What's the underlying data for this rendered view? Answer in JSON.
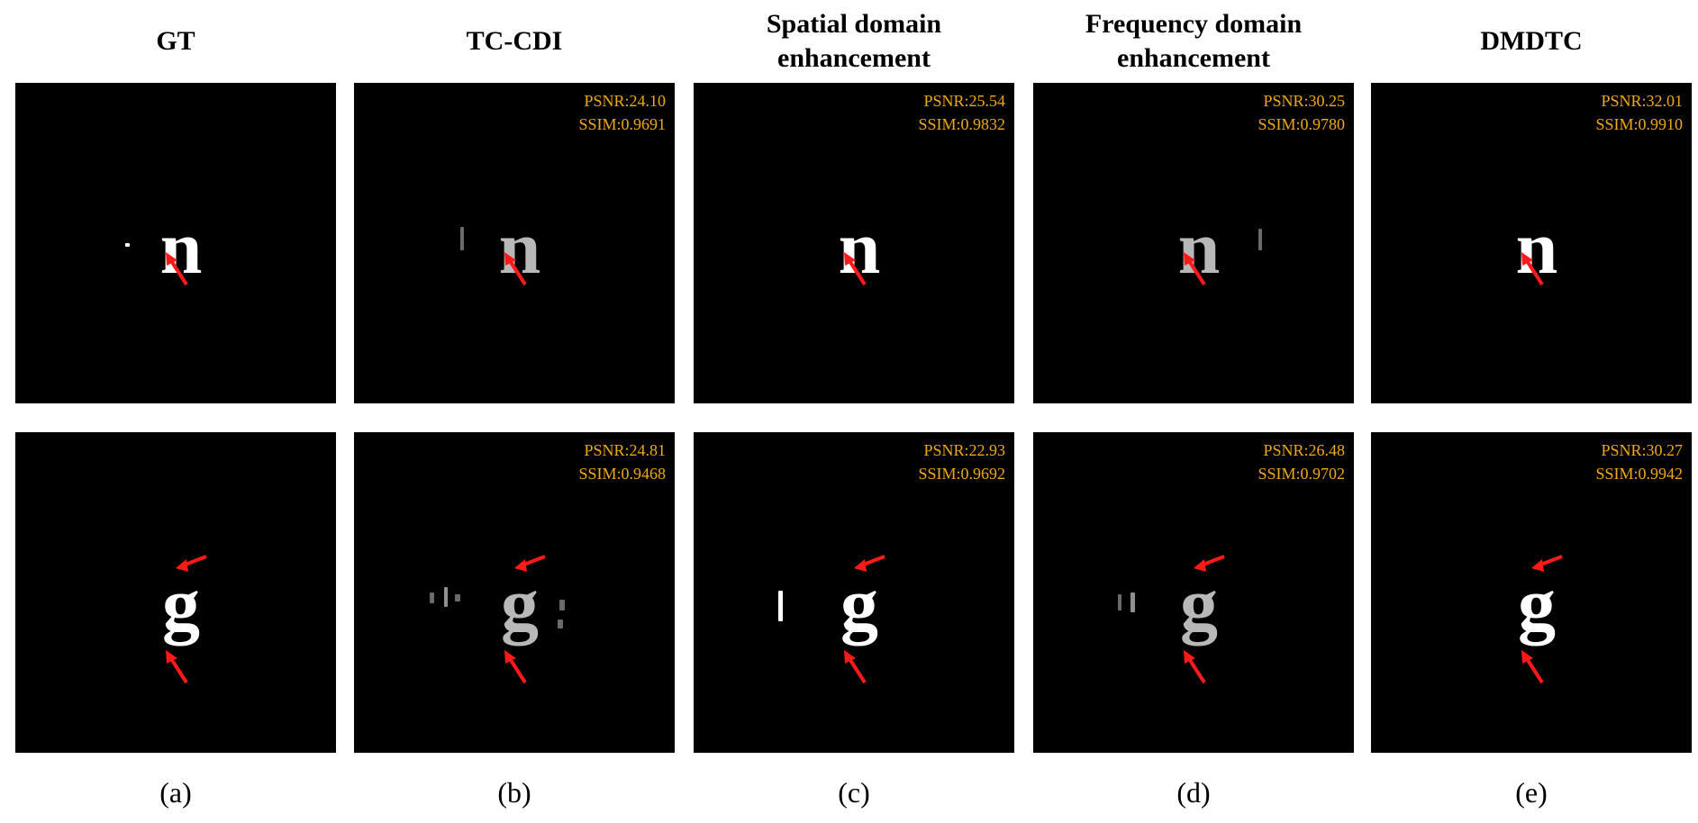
{
  "columns": [
    {
      "title": "GT",
      "caption": "(a)",
      "row1": {
        "glyph": "n",
        "psnr": "",
        "ssim": ""
      },
      "row2": {
        "glyph": "g",
        "psnr": "",
        "ssim": ""
      }
    },
    {
      "title": "TC-CDI",
      "caption": "(b)",
      "row1": {
        "glyph": "n",
        "psnr": "PSNR:24.10",
        "ssim": "SSIM:0.9691"
      },
      "row2": {
        "glyph": "g",
        "psnr": "PSNR:24.81",
        "ssim": "SSIM:0.9468"
      }
    },
    {
      "title": "Spatial domain\nenhancement",
      "caption": "(c)",
      "row1": {
        "glyph": "n",
        "psnr": "PSNR:25.54",
        "ssim": "SSIM:0.9832"
      },
      "row2": {
        "glyph": "g",
        "psnr": "PSNR:22.93",
        "ssim": "SSIM:0.9692"
      }
    },
    {
      "title": "Frequency domain\nenhancement",
      "caption": "(d)",
      "row1": {
        "glyph": "n",
        "psnr": "PSNR:30.25",
        "ssim": "SSIM:0.9780"
      },
      "row2": {
        "glyph": "g",
        "psnr": "PSNR:26.48",
        "ssim": "SSIM:0.9702"
      }
    },
    {
      "title": "DMDTC",
      "caption": "(e)",
      "row1": {
        "glyph": "n",
        "psnr": "PSNR:32.01",
        "ssim": "SSIM:0.9910"
      },
      "row2": {
        "glyph": "g",
        "psnr": "PSNR:30.27",
        "ssim": "SSIM:0.9942"
      }
    }
  ],
  "colors": {
    "metric_text": "#f0a818",
    "arrow": "#ff1a1a",
    "panel_background": "#000000",
    "glyph": "#ffffff"
  },
  "icons": {
    "pointer": "red-arrow-icon"
  }
}
